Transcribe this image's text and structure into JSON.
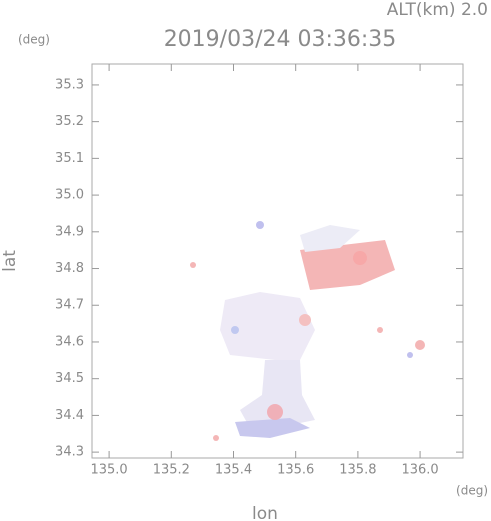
{
  "chart_data": {
    "type": "map",
    "title": "2019/03/24 03:36:35",
    "annotation": "ALT(km)  2.0",
    "y_unit": "(deg)",
    "x_unit": "(deg)",
    "xlabel": "lon",
    "ylabel": "lat",
    "xlim": [
      134.945,
      136.138
    ],
    "ylim": [
      34.284,
      35.357
    ],
    "xticks": [
      {
        "value": 135,
        "label": "135.0"
      },
      135.2,
      135.4,
      135.6,
      135.8,
      {
        "value": 136,
        "label": "136.0"
      }
    ],
    "yticks": [
      34.3,
      34.4,
      34.5,
      34.6,
      34.7,
      34.8,
      34.9,
      {
        "value": 35,
        "label": "35.0"
      },
      35.1,
      35.2,
      35.3
    ],
    "grid": false
  }
}
